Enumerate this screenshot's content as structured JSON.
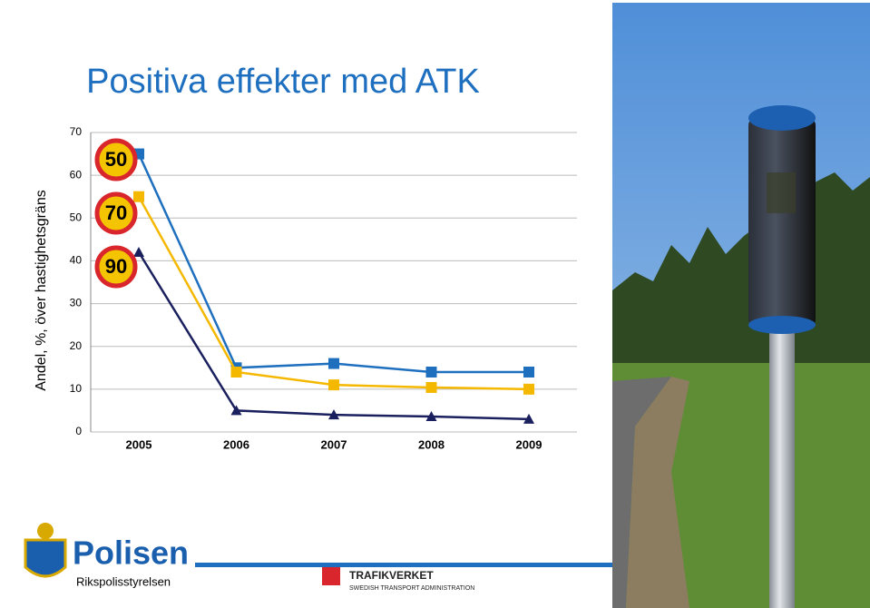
{
  "chart_data": {
    "type": "line",
    "title": "Positiva effekter med ATK",
    "y_label": "Andel, %, över hastighetsgräns",
    "categories": [
      "2005",
      "2006",
      "2007",
      "2008",
      "2009"
    ],
    "series": [
      {
        "name": "50",
        "color": "#1f6fbf",
        "marker": "square",
        "values": [
          65,
          15,
          16,
          14,
          14
        ]
      },
      {
        "name": "70",
        "color": "#f5b800",
        "marker": "square",
        "values": [
          55,
          14,
          11,
          10.4,
          10
        ]
      },
      {
        "name": "90",
        "color": "#1a1f5e",
        "marker": "triangle",
        "values": [
          42,
          5,
          4,
          3.6,
          3
        ]
      }
    ],
    "ylim": [
      0,
      70
    ],
    "yticks": [
      0,
      10,
      20,
      30,
      40,
      50,
      60,
      70
    ],
    "grid": true
  },
  "footer": {
    "logo": "Polisen",
    "organization": "Rikspolisstyrelsen",
    "agency": "TRAFIKVERKET",
    "agency_subtitle": "SWEDISH TRANSPORT ADMINISTRATION"
  }
}
